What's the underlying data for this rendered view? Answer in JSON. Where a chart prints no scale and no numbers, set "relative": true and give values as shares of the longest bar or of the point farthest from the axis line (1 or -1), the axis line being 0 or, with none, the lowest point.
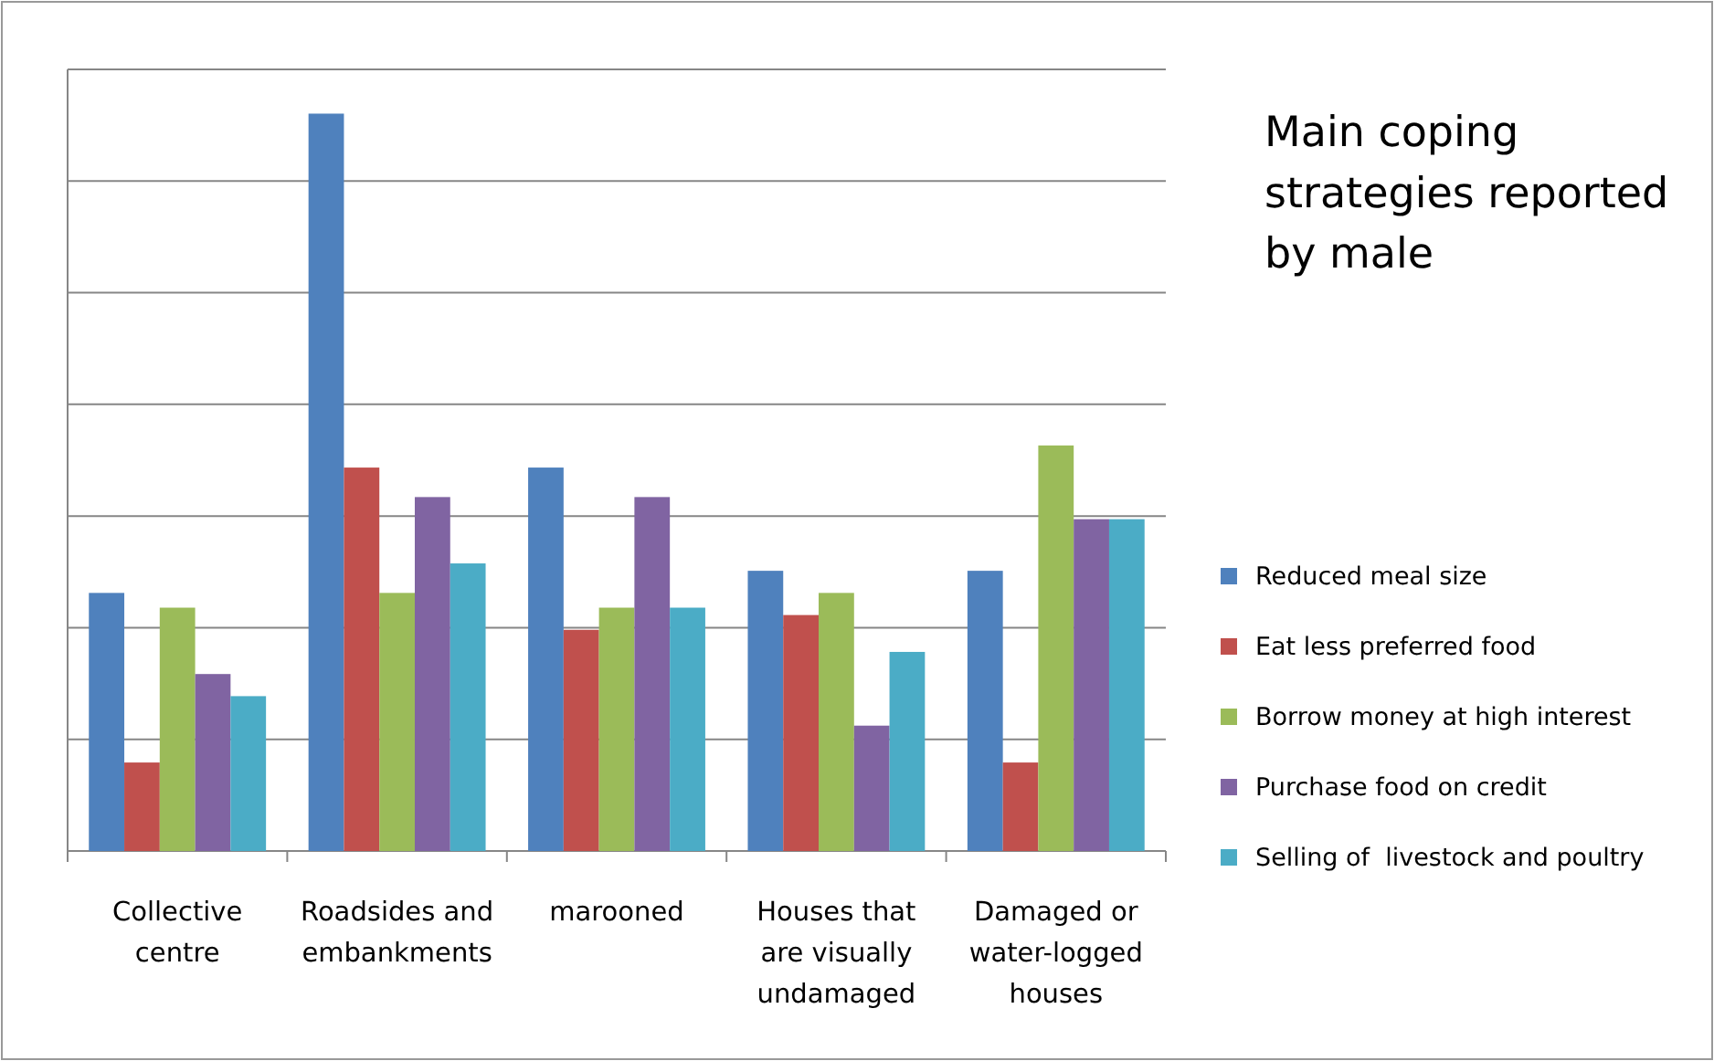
{
  "chart_data": {
    "type": "bar",
    "title": "Main coping strategies reported by male",
    "relative": true,
    "grid": true,
    "legend": "right",
    "categories": [
      "Collective centre",
      "Roadsides and embankments",
      "marooned",
      "Houses that are visually undamaged",
      "Damaged or water-logged houses"
    ],
    "series": [
      {
        "name": "Reduced meal size",
        "color": "#4f81bd",
        "values": [
          0.35,
          1,
          0.52,
          0.38,
          0.38
        ]
      },
      {
        "name": "Eat less preferred food",
        "color": "#c0504d",
        "values": [
          0.12,
          0.52,
          0.3,
          0.32,
          0.12
        ]
      },
      {
        "name": "Borrow money at high interest",
        "color": "#9bbb59",
        "values": [
          0.33,
          0.35,
          0.33,
          0.35,
          0.55
        ]
      },
      {
        "name": "Purchase food on credit",
        "color": "#8064a2",
        "values": [
          0.24,
          0.48,
          0.48,
          0.17,
          0.45
        ]
      },
      {
        "name": "Selling of  livestock and poultry",
        "color": "#4bacc6",
        "values": [
          0.21,
          0.39,
          0.33,
          0.27,
          0.45
        ]
      }
    ]
  }
}
